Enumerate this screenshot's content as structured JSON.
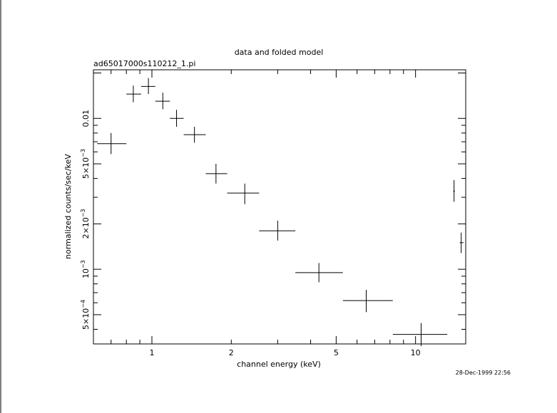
{
  "chart_data": {
    "type": "scatter",
    "title": "data and folded model",
    "subtitle": "ad65017000s110212_1.pi",
    "xlabel": "channel energy (keV)",
    "ylabel": "normalized counts/sec/keV",
    "xscale": "log",
    "yscale": "log",
    "xlim": [
      0.6,
      15.5
    ],
    "ylim": [
      0.00032,
      0.021
    ],
    "grid": false,
    "legend": "none",
    "timestamp": "28-Dec-1999 22:56",
    "x_ticks": [
      {
        "value": 1,
        "label": "1"
      },
      {
        "value": 2,
        "label": "2"
      },
      {
        "value": 5,
        "label": "5"
      },
      {
        "value": 10,
        "label": "10"
      }
    ],
    "y_ticks": [
      {
        "value": 0.0005,
        "label": "5×10⁻⁴",
        "mant": "5×10",
        "exp": "−4"
      },
      {
        "value": 0.001,
        "label": "10⁻³",
        "mant": "10",
        "exp": "−3"
      },
      {
        "value": 0.002,
        "label": "2×10⁻³",
        "mant": "2×10",
        "exp": "−3"
      },
      {
        "value": 0.005,
        "label": "5×10⁻³",
        "mant": "5×10",
        "exp": "−3"
      },
      {
        "value": 0.01,
        "label": "0.01",
        "mant": "0.01",
        "exp": ""
      }
    ],
    "series": [
      {
        "points": [
          {
            "x": 0.7,
            "xlo": 0.62,
            "xhi": 0.8,
            "y": 0.0068,
            "ylo": 0.0058,
            "yhi": 0.008
          },
          {
            "x": 0.85,
            "xlo": 0.8,
            "xhi": 0.91,
            "y": 0.0145,
            "ylo": 0.0128,
            "yhi": 0.0165
          },
          {
            "x": 0.97,
            "xlo": 0.91,
            "xhi": 1.03,
            "y": 0.0163,
            "ylo": 0.0145,
            "yhi": 0.0185
          },
          {
            "x": 1.1,
            "xlo": 1.03,
            "xhi": 1.17,
            "y": 0.013,
            "ylo": 0.0115,
            "yhi": 0.0148
          },
          {
            "x": 1.24,
            "xlo": 1.17,
            "xhi": 1.32,
            "y": 0.01,
            "ylo": 0.0088,
            "yhi": 0.0114
          },
          {
            "x": 1.45,
            "xlo": 1.32,
            "xhi": 1.6,
            "y": 0.0078,
            "ylo": 0.0069,
            "yhi": 0.0088
          },
          {
            "x": 1.75,
            "xlo": 1.6,
            "xhi": 1.93,
            "y": 0.0043,
            "ylo": 0.0037,
            "yhi": 0.005
          },
          {
            "x": 2.25,
            "xlo": 1.93,
            "xhi": 2.55,
            "y": 0.0032,
            "ylo": 0.0027,
            "yhi": 0.0037
          },
          {
            "x": 3.0,
            "xlo": 2.55,
            "xhi": 3.5,
            "y": 0.0018,
            "ylo": 0.00155,
            "yhi": 0.0021
          },
          {
            "x": 4.3,
            "xlo": 3.5,
            "xhi": 5.3,
            "y": 0.00095,
            "ylo": 0.00082,
            "yhi": 0.0011
          },
          {
            "x": 6.5,
            "xlo": 5.3,
            "xhi": 8.2,
            "y": 0.00062,
            "ylo": 0.00052,
            "yhi": 0.00073
          },
          {
            "x": 10.5,
            "xlo": 8.2,
            "xhi": 13.2,
            "y": 0.00037,
            "ylo": 0.00031,
            "yhi": 0.00044
          },
          {
            "x": 14.0,
            "xlo": 13.9,
            "xhi": 14.1,
            "y": 0.0033,
            "ylo": 0.0028,
            "yhi": 0.0039
          },
          {
            "x": 14.9,
            "xlo": 14.7,
            "xhi": 15.2,
            "y": 0.0015,
            "ylo": 0.00128,
            "yhi": 0.00175
          }
        ]
      }
    ]
  }
}
